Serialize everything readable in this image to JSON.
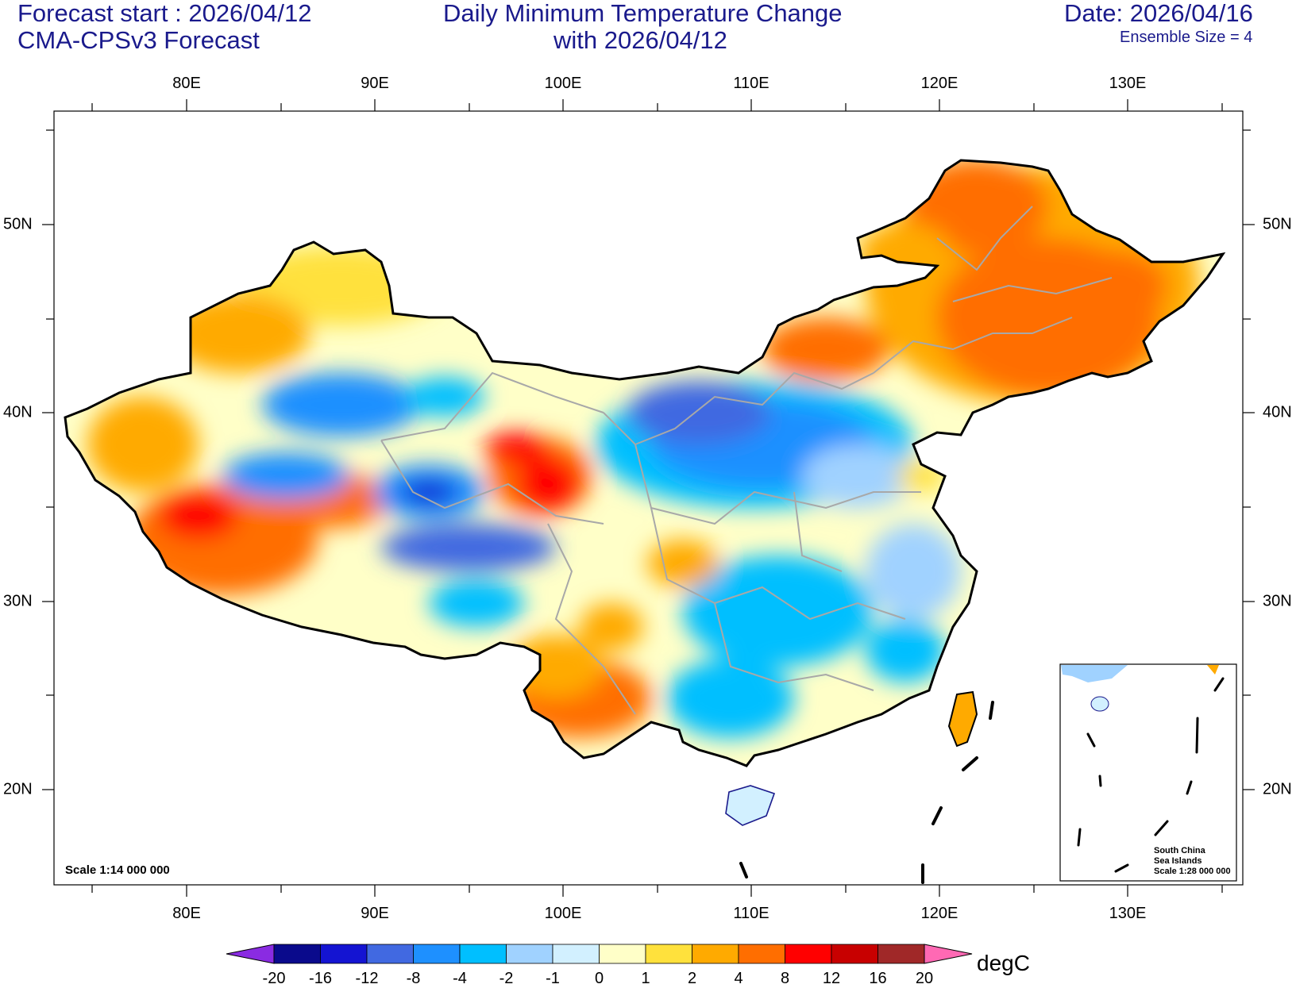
{
  "header": {
    "forecast_start": "Forecast start : 2026/04/12",
    "model": "CMA-CPSv3 Forecast",
    "title_line1": "Daily Minimum Temperature Change",
    "title_line2": "with 2026/04/12",
    "date": "Date: 2026/04/16",
    "ensemble": "Ensemble Size = 4"
  },
  "axes": {
    "lon_ticks": [
      "80E",
      "90E",
      "100E",
      "110E",
      "120E",
      "130E"
    ],
    "lat_ticks": [
      "50N",
      "40N",
      "30N",
      "20N"
    ]
  },
  "map": {
    "scale_label": "Scale 1:14 000 000",
    "inset": {
      "line1": "South China",
      "line2": "Sea Islands",
      "line3": "Scale 1:28 000 000"
    }
  },
  "colorbar": {
    "units": "degC",
    "levels": [
      "-20",
      "-16",
      "-12",
      "-8",
      "-4",
      "-2",
      "-1",
      "0",
      "1",
      "2",
      "4",
      "8",
      "12",
      "16",
      "20"
    ],
    "colors": [
      "#0a0a8c",
      "#1414d2",
      "#4169e1",
      "#1e90ff",
      "#00bfff",
      "#a0d2ff",
      "#d2f0ff",
      "#ffffc8",
      "#ffe13c",
      "#ffaa00",
      "#ff6e00",
      "#ff0000",
      "#c80000",
      "#a02828"
    ],
    "below_color": "#8a2be2",
    "above_color": "#ff69b4"
  }
}
